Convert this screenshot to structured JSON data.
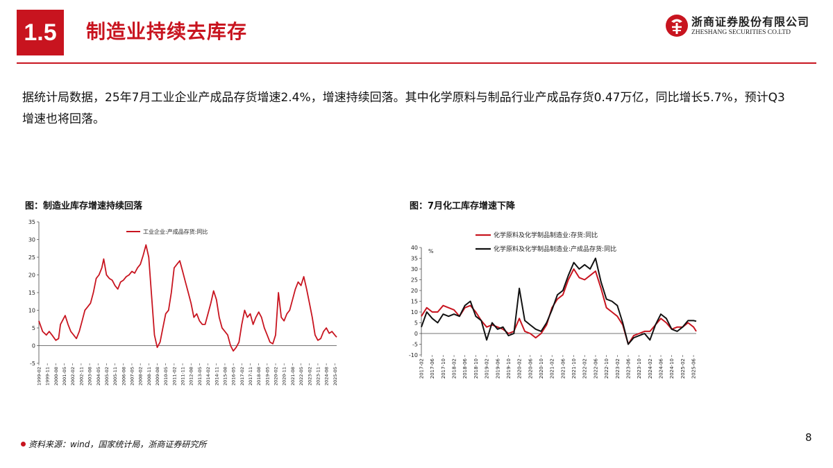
{
  "header": {
    "section_number": "1.5",
    "title": "制造业持续去库存",
    "logo_cn": "浙商证券股份有限公司",
    "logo_en": "ZHESHANG SECURITIES CO.LTD",
    "brand_color": "#c8141f"
  },
  "summary": "据统计局数据，25年7月工业企业产成品存货增速2.4%，增速持续回落。其中化学原料与制品行业产成品存货0.47万亿，同比增长5.7%，预计Q3增速也将回落。",
  "footer": {
    "source": "资料来源：wind，国家统计局，浙商证券研究所",
    "page_number": "8"
  },
  "chart_data": [
    {
      "type": "line",
      "title": "图：制造业库存增速持续回落",
      "xlabel": "",
      "ylabel": "",
      "ylim": [
        -5,
        35
      ],
      "yticks": [
        -5,
        0,
        5,
        10,
        15,
        20,
        25,
        30,
        35
      ],
      "x_range": [
        "1999-02",
        "2025-07"
      ],
      "tick_labels": [
        "1999-02",
        "1999-11",
        "2000-08",
        "2001-05",
        "2002-02",
        "2002-11",
        "2003-08",
        "2004-05",
        "2005-02",
        "2005-11",
        "2006-08",
        "2007-05",
        "2008-02",
        "2008-11",
        "2009-08",
        "2010-05",
        "2011-02",
        "2011-11",
        "2012-08",
        "2013-05",
        "2014-02",
        "2014-11",
        "2015-08",
        "2016-05",
        "2017-02",
        "2017-11",
        "2018-08",
        "2019-05",
        "2020-02",
        "2020-11",
        "2021-08",
        "2022-05",
        "2023-02",
        "2023-11",
        "2024-08",
        "2025-05"
      ],
      "grid": false,
      "legend": "top-center",
      "series": [
        {
          "name": "工业企业:产成品存货:同比",
          "color": "#c8141f",
          "points": [
            [
              "1999-02",
              7
            ],
            [
              "1999-06",
              4
            ],
            [
              "1999-10",
              3
            ],
            [
              "2000-01",
              4
            ],
            [
              "2000-04",
              3
            ],
            [
              "2000-08",
              1.5
            ],
            [
              "2000-11",
              2
            ],
            [
              "2001-01",
              6
            ],
            [
              "2001-03",
              7
            ],
            [
              "2001-06",
              8.5
            ],
            [
              "2001-09",
              6
            ],
            [
              "2001-12",
              4
            ],
            [
              "2002-03",
              3
            ],
            [
              "2002-06",
              2
            ],
            [
              "2002-09",
              4
            ],
            [
              "2002-12",
              7
            ],
            [
              "2003-03",
              10
            ],
            [
              "2003-06",
              11
            ],
            [
              "2003-09",
              12
            ],
            [
              "2003-12",
              15
            ],
            [
              "2004-03",
              19
            ],
            [
              "2004-06",
              20
            ],
            [
              "2004-09",
              22
            ],
            [
              "2004-11",
              24.5
            ],
            [
              "2005-02",
              20
            ],
            [
              "2005-05",
              19
            ],
            [
              "2005-08",
              18.5
            ],
            [
              "2005-11",
              17
            ],
            [
              "2006-02",
              16
            ],
            [
              "2006-05",
              18
            ],
            [
              "2006-08",
              18.5
            ],
            [
              "2006-11",
              19.5
            ],
            [
              "2007-02",
              20
            ],
            [
              "2007-05",
              21
            ],
            [
              "2007-08",
              20.5
            ],
            [
              "2007-11",
              22
            ],
            [
              "2008-02",
              23
            ],
            [
              "2008-05",
              25.5
            ],
            [
              "2008-08",
              28.5
            ],
            [
              "2008-11",
              25
            ],
            [
              "2009-02",
              14
            ],
            [
              "2009-05",
              3
            ],
            [
              "2009-08",
              -0.5
            ],
            [
              "2009-11",
              1
            ],
            [
              "2010-02",
              5
            ],
            [
              "2010-05",
              9
            ],
            [
              "2010-08",
              10
            ],
            [
              "2010-11",
              15
            ],
            [
              "2011-02",
              22
            ],
            [
              "2011-05",
              23
            ],
            [
              "2011-08",
              24
            ],
            [
              "2011-11",
              21
            ],
            [
              "2012-02",
              18
            ],
            [
              "2012-05",
              15
            ],
            [
              "2012-08",
              12
            ],
            [
              "2012-11",
              8
            ],
            [
              "2013-02",
              9
            ],
            [
              "2013-05",
              7
            ],
            [
              "2013-08",
              6
            ],
            [
              "2013-11",
              6
            ],
            [
              "2014-02",
              9
            ],
            [
              "2014-05",
              12
            ],
            [
              "2014-08",
              15.5
            ],
            [
              "2014-11",
              13
            ],
            [
              "2015-02",
              8
            ],
            [
              "2015-05",
              5
            ],
            [
              "2015-08",
              4
            ],
            [
              "2015-11",
              3
            ],
            [
              "2016-02",
              0
            ],
            [
              "2016-05",
              -1.5
            ],
            [
              "2016-08",
              -0.5
            ],
            [
              "2016-11",
              1
            ],
            [
              "2017-02",
              6
            ],
            [
              "2017-05",
              10
            ],
            [
              "2017-08",
              8
            ],
            [
              "2017-11",
              9
            ],
            [
              "2018-02",
              6
            ],
            [
              "2018-05",
              8
            ],
            [
              "2018-08",
              9.5
            ],
            [
              "2018-11",
              8
            ],
            [
              "2019-02",
              5
            ],
            [
              "2019-05",
              3
            ],
            [
              "2019-08",
              1
            ],
            [
              "2019-11",
              0.5
            ],
            [
              "2020-02",
              3
            ],
            [
              "2020-05",
              15
            ],
            [
              "2020-08",
              8
            ],
            [
              "2020-11",
              7
            ],
            [
              "2021-02",
              9
            ],
            [
              "2021-05",
              10
            ],
            [
              "2021-08",
              13
            ],
            [
              "2021-11",
              16
            ],
            [
              "2022-02",
              18
            ],
            [
              "2022-05",
              17
            ],
            [
              "2022-08",
              19.5
            ],
            [
              "2022-11",
              16
            ],
            [
              "2023-02",
              12
            ],
            [
              "2023-05",
              8
            ],
            [
              "2023-08",
              3
            ],
            [
              "2023-11",
              1.5
            ],
            [
              "2024-02",
              2
            ],
            [
              "2024-05",
              4
            ],
            [
              "2024-08",
              5
            ],
            [
              "2024-11",
              3.5
            ],
            [
              "2025-02",
              4
            ],
            [
              "2025-05",
              3
            ],
            [
              "2025-07",
              2.4
            ]
          ]
        }
      ]
    },
    {
      "type": "line",
      "title": "图：7月化工库存增速下降",
      "xlabel": "",
      "ylabel": "%",
      "ylim": [
        -10,
        40
      ],
      "yticks": [
        -10,
        -5,
        0,
        5,
        10,
        15,
        20,
        25,
        30,
        35,
        40
      ],
      "x_range": [
        "2017-02",
        "2025-07"
      ],
      "tick_labels": [
        "2017-02",
        "2017-06",
        "2017-10",
        "2018-02",
        "2018-06",
        "2018-10",
        "2019-02",
        "2019-06",
        "2019-10",
        "2020-02",
        "2020-06",
        "2020-10",
        "2021-02",
        "2021-06",
        "2021-10",
        "2022-02",
        "2022-06",
        "2022-10",
        "2023-02",
        "2023-06",
        "2023-10",
        "2024-02",
        "2024-06",
        "2024-10",
        "2025-02",
        "2025-06"
      ],
      "grid": false,
      "legend": "top-center",
      "series": [
        {
          "name": "化学原料及化学制品制造业:存货:同比",
          "color": "#c8141f",
          "points": [
            [
              "2017-02",
              8
            ],
            [
              "2017-04",
              12
            ],
            [
              "2017-06",
              10
            ],
            [
              "2017-08",
              10
            ],
            [
              "2017-10",
              13
            ],
            [
              "2017-12",
              12
            ],
            [
              "2018-02",
              11
            ],
            [
              "2018-04",
              8
            ],
            [
              "2018-06",
              12
            ],
            [
              "2018-08",
              13
            ],
            [
              "2018-10",
              10
            ],
            [
              "2018-12",
              6
            ],
            [
              "2019-02",
              3
            ],
            [
              "2019-04",
              4
            ],
            [
              "2019-06",
              3
            ],
            [
              "2019-08",
              2
            ],
            [
              "2019-10",
              0
            ],
            [
              "2019-12",
              1
            ],
            [
              "2020-02",
              7
            ],
            [
              "2020-04",
              1
            ],
            [
              "2020-06",
              0
            ],
            [
              "2020-08",
              -2
            ],
            [
              "2020-10",
              0
            ],
            [
              "2020-12",
              4
            ],
            [
              "2021-02",
              12
            ],
            [
              "2021-04",
              16
            ],
            [
              "2021-06",
              18
            ],
            [
              "2021-08",
              25
            ],
            [
              "2021-10",
              30
            ],
            [
              "2021-12",
              26
            ],
            [
              "2022-02",
              25
            ],
            [
              "2022-04",
              27
            ],
            [
              "2022-06",
              29
            ],
            [
              "2022-08",
              21
            ],
            [
              "2022-10",
              12
            ],
            [
              "2022-12",
              10
            ],
            [
              "2023-02",
              8
            ],
            [
              "2023-04",
              4
            ],
            [
              "2023-06",
              -5
            ],
            [
              "2023-08",
              -1
            ],
            [
              "2023-10",
              0
            ],
            [
              "2023-12",
              1
            ],
            [
              "2024-02",
              1
            ],
            [
              "2024-04",
              4
            ],
            [
              "2024-06",
              7
            ],
            [
              "2024-08",
              5
            ],
            [
              "2024-10",
              2
            ],
            [
              "2024-12",
              3
            ],
            [
              "2025-02",
              3
            ],
            [
              "2025-04",
              5
            ],
            [
              "2025-06",
              3
            ],
            [
              "2025-07",
              1
            ]
          ]
        },
        {
          "name": "化学原料及化学制品制造业:产成品存货:同比",
          "color": "#111111",
          "points": [
            [
              "2017-02",
              3
            ],
            [
              "2017-04",
              10
            ],
            [
              "2017-06",
              7
            ],
            [
              "2017-08",
              5
            ],
            [
              "2017-10",
              9
            ],
            [
              "2017-12",
              8
            ],
            [
              "2018-02",
              9
            ],
            [
              "2018-04",
              8
            ],
            [
              "2018-06",
              13
            ],
            [
              "2018-08",
              15
            ],
            [
              "2018-10",
              8
            ],
            [
              "2018-12",
              6
            ],
            [
              "2019-02",
              -3
            ],
            [
              "2019-04",
              5
            ],
            [
              "2019-06",
              2
            ],
            [
              "2019-08",
              3
            ],
            [
              "2019-10",
              -1
            ],
            [
              "2019-12",
              0
            ],
            [
              "2020-02",
              21
            ],
            [
              "2020-04",
              6
            ],
            [
              "2020-06",
              4
            ],
            [
              "2020-08",
              2
            ],
            [
              "2020-10",
              1
            ],
            [
              "2020-12",
              5
            ],
            [
              "2021-02",
              11
            ],
            [
              "2021-04",
              18
            ],
            [
              "2021-06",
              20
            ],
            [
              "2021-08",
              27
            ],
            [
              "2021-10",
              33
            ],
            [
              "2021-12",
              30
            ],
            [
              "2022-02",
              32
            ],
            [
              "2022-04",
              30
            ],
            [
              "2022-06",
              35
            ],
            [
              "2022-08",
              24
            ],
            [
              "2022-10",
              16
            ],
            [
              "2022-12",
              15
            ],
            [
              "2023-02",
              13
            ],
            [
              "2023-04",
              5
            ],
            [
              "2023-06",
              -5
            ],
            [
              "2023-08",
              -2
            ],
            [
              "2023-10",
              -1
            ],
            [
              "2023-12",
              0
            ],
            [
              "2024-02",
              -3
            ],
            [
              "2024-04",
              4
            ],
            [
              "2024-06",
              9
            ],
            [
              "2024-08",
              7
            ],
            [
              "2024-10",
              2
            ],
            [
              "2024-12",
              1
            ],
            [
              "2025-02",
              3
            ],
            [
              "2025-04",
              6
            ],
            [
              "2025-06",
              6
            ],
            [
              "2025-07",
              5.7
            ]
          ]
        }
      ]
    }
  ]
}
